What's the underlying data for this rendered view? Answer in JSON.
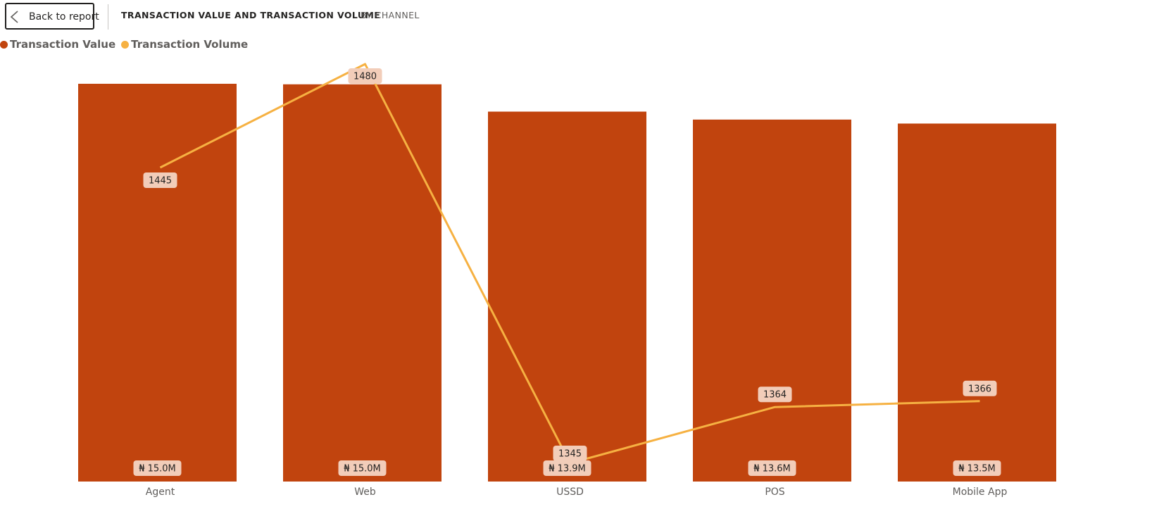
{
  "header": {
    "back_label": "Back to report",
    "title_primary": "TRANSACTION VALUE AND TRANSACTION VOLUME",
    "title_secondary": "BY CHANNEL"
  },
  "colors": {
    "bar": "#C1440E",
    "line": "#F6B142",
    "label_bg": "#F2CDB9"
  },
  "chart_data": {
    "type": "bar",
    "categories": [
      "Agent",
      "Web",
      "USSD",
      "POS",
      "Mobile App"
    ],
    "series": [
      {
        "name": "Transaction Value",
        "type": "bar",
        "values": [
          15.0,
          14.98,
          13.95,
          13.65,
          13.5
        ],
        "labels": [
          "₦ 15.0M",
          "₦ 15.0M",
          "₦ 13.9M",
          "₦ 13.6M",
          "₦ 13.5M"
        ]
      },
      {
        "name": "Transaction Volume",
        "type": "line",
        "values": [
          1445,
          1480,
          1345,
          1364,
          1366
        ],
        "labels": [
          "1445",
          "1480",
          "1345",
          "1364",
          "1366"
        ]
      }
    ],
    "legend_position": "top-left",
    "grid": false
  }
}
